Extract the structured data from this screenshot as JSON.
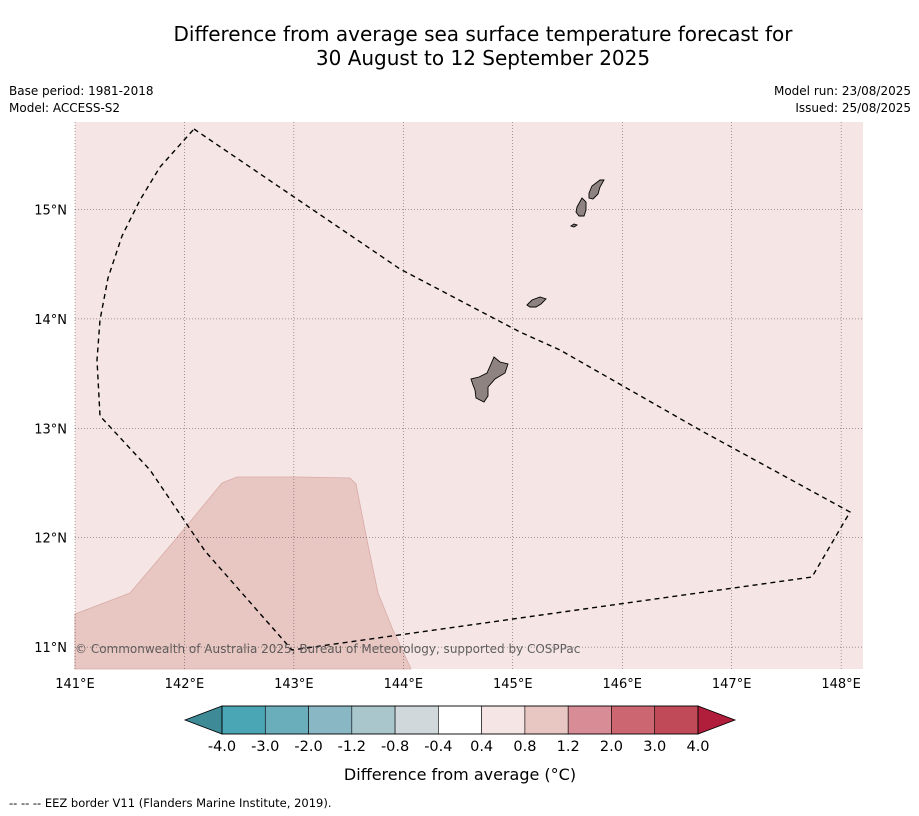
{
  "title": {
    "line1": "Difference from average sea surface temperature forecast for",
    "line2": "30 August to 12 September 2025"
  },
  "meta": {
    "base_period": "Base period: 1981-2018",
    "model": "Model: ACCESS-S2",
    "model_run": "Model run: 23/08/2025",
    "issued": "Issued: 25/08/2025"
  },
  "map": {
    "lon_range": [
      141.0,
      148.2
    ],
    "lat_range": [
      10.8,
      15.8
    ],
    "lon_ticks": [
      {
        "value": 141,
        "label": "141°E"
      },
      {
        "value": 142,
        "label": "142°E"
      },
      {
        "value": 143,
        "label": "143°E"
      },
      {
        "value": 144,
        "label": "144°E"
      },
      {
        "value": 145,
        "label": "145°E"
      },
      {
        "value": 146,
        "label": "146°E"
      },
      {
        "value": 147,
        "label": "147°E"
      },
      {
        "value": 148,
        "label": "148°E"
      }
    ],
    "lat_ticks": [
      {
        "value": 15,
        "label": "15°N"
      },
      {
        "value": 14,
        "label": "14°N"
      },
      {
        "value": 13,
        "label": "13°N"
      },
      {
        "value": 12,
        "label": "12°N"
      },
      {
        "value": 11,
        "label": "11°N"
      }
    ],
    "grid": true,
    "background_category": "0.4 to 0.8",
    "anomaly_region_category": "0.8 to 1.2",
    "islands": [
      "Guam",
      "Rota",
      "Tinian",
      "Saipan"
    ],
    "copyright": "© Commonwealth of Australia 2025, Bureau of Meteorology, supported by COSPPac"
  },
  "colorbar": {
    "labels": [
      "-4.0",
      "-3.0",
      "-2.0",
      "-1.2",
      "-0.8",
      "-0.4",
      "0.4",
      "0.8",
      "1.2",
      "2.0",
      "3.0",
      "4.0"
    ],
    "colors": [
      "#4aa5b5",
      "#6aaebc",
      "#89b7c3",
      "#a8c6cb",
      "#d1d8db",
      "#ffffff",
      "#f5e6e5",
      "#e8c7c3",
      "#d88c96",
      "#cc6670",
      "#c04a58"
    ],
    "underflow_color": "#3e8a97",
    "overflow_color": "#b01e3c",
    "label": "Difference from average (°C)"
  },
  "footnote": "--  --  -- EEZ border V11 (Flanders Marine Institute, 2019)."
}
